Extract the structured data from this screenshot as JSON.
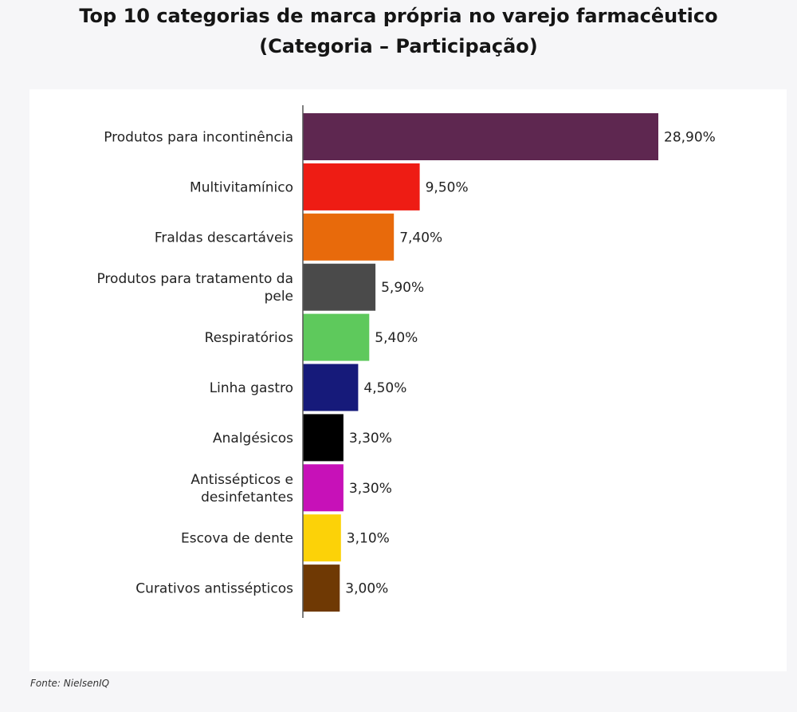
{
  "page": {
    "title_line1": "Top 10 categorias de marca própria no varejo farmacêutico",
    "title_line2": "(Categoria – Participação)",
    "source": "Fonte: NielsenIQ"
  },
  "chart_data": {
    "type": "bar",
    "orientation": "horizontal",
    "title": "Top 10 categorias de marca própria no varejo farmacêutico",
    "subtitle": "(Categoria – Participação)",
    "xlabel": "",
    "ylabel": "",
    "xlim": [
      0,
      28.9
    ],
    "grid": false,
    "legend": "none",
    "categories": [
      [
        "Produtos para incontinência"
      ],
      [
        "Multivitamínico"
      ],
      [
        "Fraldas descartáveis"
      ],
      [
        "Produtos para tratamento da",
        "pele"
      ],
      [
        "Respiratórios"
      ],
      [
        "Linha gastro"
      ],
      [
        "Analgésicos"
      ],
      [
        "Antissépticos e",
        "desinfetantes"
      ],
      [
        "Escova de dente"
      ],
      [
        "Curativos antissépticos"
      ]
    ],
    "values": [
      28.9,
      9.5,
      7.4,
      5.9,
      5.4,
      4.5,
      3.3,
      3.3,
      3.1,
      3.0
    ],
    "value_labels": [
      "28,90%",
      "9,50%",
      "7,40%",
      "5,90%",
      "5,40%",
      "4,50%",
      "3,30%",
      "3,30%",
      "3,10%",
      "3,00%"
    ],
    "colors": [
      "#5e2750",
      "#ee1c14",
      "#e86a0b",
      "#4a4a4a",
      "#5ec95c",
      "#161a7a",
      "#000000",
      "#c711b8",
      "#fcd208",
      "#6f3904"
    ]
  }
}
